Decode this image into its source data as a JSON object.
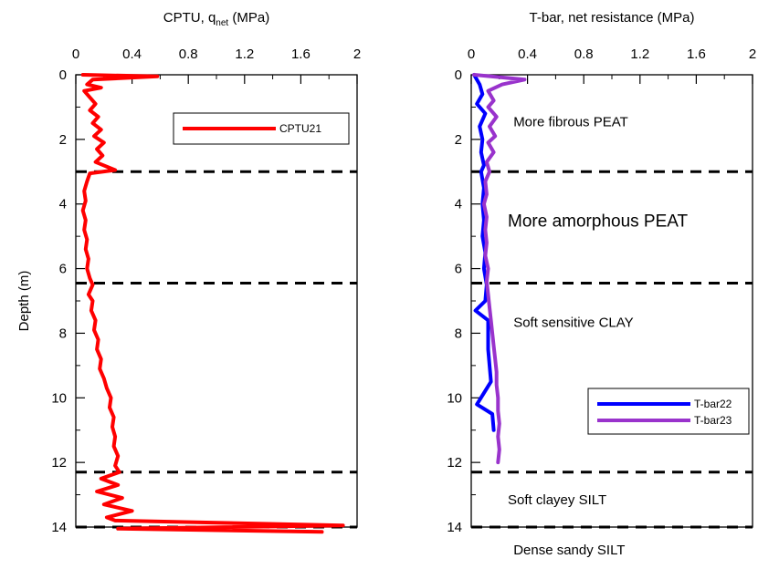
{
  "chart_data": [
    {
      "type": "line",
      "title": "CPTU, q",
      "title_sub": "net",
      "title_suffix": " (MPa)",
      "ylabel": "Depth (m)",
      "xlim": [
        0,
        2
      ],
      "ylim": [
        0,
        14
      ],
      "x_ticks": [
        "0",
        "0.4",
        "0.8",
        "1.2",
        "1.6",
        "2"
      ],
      "y_ticks": [
        "0",
        "2",
        "4",
        "6",
        "8",
        "10",
        "12",
        "14"
      ],
      "x_tick_values": [
        0,
        0.4,
        0.8,
        1.2,
        1.6,
        2
      ],
      "y_tick_values": [
        0,
        2,
        4,
        6,
        8,
        10,
        12,
        14
      ],
      "boundaries": [
        3.0,
        6.45,
        12.3,
        14.0
      ],
      "legend": "top-right",
      "series": [
        {
          "name": "CPTU21",
          "color": "#ff0000",
          "points": [
            [
              0.05,
              0.0
            ],
            [
              0.58,
              0.05
            ],
            [
              0.12,
              0.15
            ],
            [
              0.08,
              0.3
            ],
            [
              0.18,
              0.4
            ],
            [
              0.06,
              0.5
            ],
            [
              0.1,
              0.7
            ],
            [
              0.14,
              0.9
            ],
            [
              0.1,
              1.1
            ],
            [
              0.16,
              1.3
            ],
            [
              0.12,
              1.5
            ],
            [
              0.18,
              1.7
            ],
            [
              0.13,
              1.9
            ],
            [
              0.2,
              2.1
            ],
            [
              0.15,
              2.3
            ],
            [
              0.19,
              2.5
            ],
            [
              0.14,
              2.7
            ],
            [
              0.28,
              2.95
            ],
            [
              0.1,
              3.05
            ],
            [
              0.08,
              3.3
            ],
            [
              0.06,
              3.6
            ],
            [
              0.07,
              3.9
            ],
            [
              0.05,
              4.2
            ],
            [
              0.07,
              4.5
            ],
            [
              0.06,
              4.8
            ],
            [
              0.08,
              5.1
            ],
            [
              0.07,
              5.4
            ],
            [
              0.09,
              5.7
            ],
            [
              0.08,
              6.0
            ],
            [
              0.1,
              6.3
            ],
            [
              0.12,
              6.5
            ],
            [
              0.09,
              6.8
            ],
            [
              0.12,
              7.0
            ],
            [
              0.11,
              7.3
            ],
            [
              0.14,
              7.6
            ],
            [
              0.13,
              7.9
            ],
            [
              0.16,
              8.2
            ],
            [
              0.15,
              8.5
            ],
            [
              0.18,
              8.8
            ],
            [
              0.17,
              9.1
            ],
            [
              0.2,
              9.4
            ],
            [
              0.22,
              9.7
            ],
            [
              0.25,
              10.0
            ],
            [
              0.24,
              10.3
            ],
            [
              0.27,
              10.6
            ],
            [
              0.26,
              10.9
            ],
            [
              0.28,
              11.2
            ],
            [
              0.27,
              11.5
            ],
            [
              0.3,
              11.8
            ],
            [
              0.28,
              12.1
            ],
            [
              0.31,
              12.3
            ],
            [
              0.18,
              12.5
            ],
            [
              0.3,
              12.7
            ],
            [
              0.15,
              12.9
            ],
            [
              0.33,
              13.1
            ],
            [
              0.2,
              13.3
            ],
            [
              0.4,
              13.5
            ],
            [
              0.22,
              13.7
            ],
            [
              0.28,
              13.8
            ],
            [
              1.9,
              13.95
            ],
            [
              0.3,
              14.05
            ],
            [
              1.75,
              14.15
            ]
          ]
        }
      ],
      "annotations": []
    },
    {
      "type": "line",
      "title": "T-bar, net resistance (MPa)",
      "ylabel": "",
      "xlim": [
        0,
        2
      ],
      "ylim": [
        0,
        14
      ],
      "x_ticks": [
        "0",
        "0.4",
        "0.8",
        "1.2",
        "1.6",
        "2"
      ],
      "y_ticks": [
        "0",
        "2",
        "4",
        "6",
        "8",
        "10",
        "12",
        "14"
      ],
      "x_tick_values": [
        0,
        0.4,
        0.8,
        1.2,
        1.6,
        2
      ],
      "y_tick_values": [
        0,
        2,
        4,
        6,
        8,
        10,
        12,
        14
      ],
      "boundaries": [
        3.0,
        6.45,
        12.3,
        14.0
      ],
      "legend": "bottom-right",
      "series": [
        {
          "name": "T-bar22",
          "color": "#0000ff",
          "points": [
            [
              0.02,
              0.0
            ],
            [
              0.06,
              0.3
            ],
            [
              0.08,
              0.6
            ],
            [
              0.04,
              0.9
            ],
            [
              0.1,
              1.2
            ],
            [
              0.06,
              1.6
            ],
            [
              0.08,
              2.0
            ],
            [
              0.07,
              2.4
            ],
            [
              0.09,
              2.8
            ],
            [
              0.07,
              3.0
            ],
            [
              0.09,
              3.5
            ],
            [
              0.08,
              4.0
            ],
            [
              0.09,
              4.5
            ],
            [
              0.08,
              5.0
            ],
            [
              0.1,
              5.5
            ],
            [
              0.09,
              6.0
            ],
            [
              0.11,
              6.5
            ],
            [
              0.1,
              7.0
            ],
            [
              0.03,
              7.3
            ],
            [
              0.12,
              7.6
            ],
            [
              0.12,
              8.5
            ],
            [
              0.14,
              9.5
            ],
            [
              0.04,
              10.2
            ],
            [
              0.15,
              10.5
            ],
            [
              0.16,
              11.0
            ]
          ]
        },
        {
          "name": "T-bar23",
          "color": "#9933cc",
          "points": [
            [
              0.02,
              0.0
            ],
            [
              0.38,
              0.15
            ],
            [
              0.22,
              0.3
            ],
            [
              0.12,
              0.5
            ],
            [
              0.16,
              0.8
            ],
            [
              0.12,
              1.0
            ],
            [
              0.18,
              1.3
            ],
            [
              0.13,
              1.6
            ],
            [
              0.17,
              1.9
            ],
            [
              0.12,
              2.1
            ],
            [
              0.16,
              2.4
            ],
            [
              0.11,
              2.7
            ],
            [
              0.13,
              3.0
            ],
            [
              0.1,
              3.3
            ],
            [
              0.11,
              3.7
            ],
            [
              0.09,
              4.0
            ],
            [
              0.11,
              4.4
            ],
            [
              0.1,
              4.8
            ],
            [
              0.11,
              5.2
            ],
            [
              0.1,
              5.6
            ],
            [
              0.12,
              6.0
            ],
            [
              0.11,
              6.4
            ],
            [
              0.12,
              6.8
            ],
            [
              0.13,
              7.2
            ],
            [
              0.14,
              7.6
            ],
            [
              0.15,
              8.0
            ],
            [
              0.16,
              8.4
            ],
            [
              0.17,
              8.8
            ],
            [
              0.18,
              9.2
            ],
            [
              0.18,
              9.6
            ],
            [
              0.19,
              10.0
            ],
            [
              0.19,
              10.4
            ],
            [
              0.2,
              10.8
            ],
            [
              0.19,
              11.2
            ],
            [
              0.2,
              11.6
            ],
            [
              0.19,
              12.0
            ]
          ]
        }
      ],
      "annotations": [
        {
          "text": "More fibrous PEAT",
          "x": 0.3,
          "depth": 1.6,
          "size": "normal"
        },
        {
          "text": "More amorphous PEAT",
          "x": 0.26,
          "depth": 4.7,
          "size": "big"
        },
        {
          "text": "Soft sensitive CLAY",
          "x": 0.3,
          "depth": 7.8,
          "size": "normal"
        },
        {
          "text": "Soft clayey SILT",
          "x": 0.26,
          "depth": 13.3,
          "size": "normal"
        },
        {
          "text": "Dense sandy SILT",
          "x": 0.3,
          "depth": 14.85,
          "size": "normal"
        }
      ]
    }
  ]
}
